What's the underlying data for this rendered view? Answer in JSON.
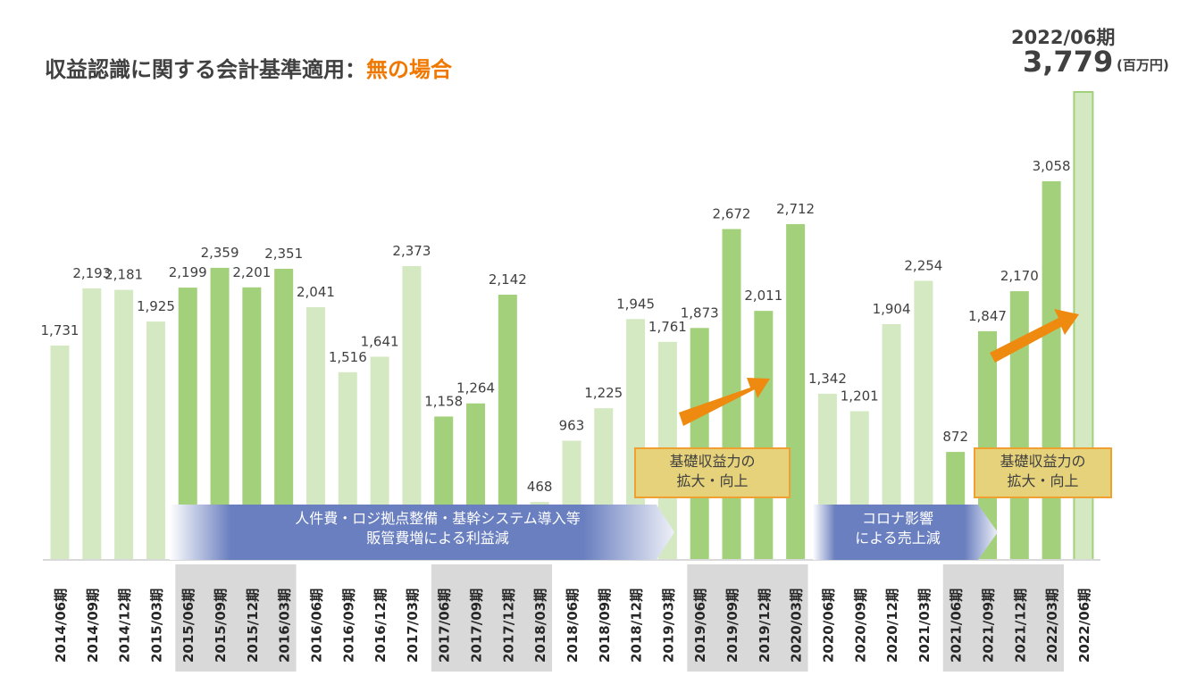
{
  "title": {
    "main": "収益認識に関する会計基準適用：",
    "highlight": "無の場合"
  },
  "header": {
    "period": "2022/06期",
    "value": "3,779",
    "unit": "(百万円)"
  },
  "annotations": {
    "banner1": [
      "人件費・ロジ拠点整備・基幹システム導入等",
      "販管費増による利益減"
    ],
    "banner2": [
      "コロナ影響",
      "による売上減"
    ],
    "box1": [
      "基礎収益力の",
      "拡大・向上"
    ],
    "box2": [
      "基礎収益力の",
      "拡大・向上"
    ]
  },
  "colors": {
    "dark": "#a3d07a",
    "light": "#d4e9c2",
    "gray": "#d9d9d9",
    "arrow": "#ef8a10",
    "banner": "#6a7fbf"
  },
  "chart_data": {
    "type": "bar",
    "title": "収益認識に関する会計基準適用：無の場合",
    "unit": "百万円",
    "ylim": [
      0,
      3779
    ],
    "categories": [
      "2014/06期",
      "2014/09期",
      "2014/12期",
      "2015/03期",
      "2015/06期",
      "2015/09期",
      "2015/12期",
      "2016/03期",
      "2016/06期",
      "2016/09期",
      "2016/12期",
      "2017/03期",
      "2017/06期",
      "2017/09期",
      "2017/12期",
      "2018/03期",
      "2018/06期",
      "2018/09期",
      "2018/12期",
      "2019/03期",
      "2019/06期",
      "2019/09期",
      "2019/12期",
      "2020/03期",
      "2020/06期",
      "2020/09期",
      "2020/12期",
      "2021/03期",
      "2021/06期",
      "2021/09期",
      "2021/12期",
      "2022/03期",
      "2022/06期"
    ],
    "values": [
      1731,
      2193,
      2181,
      1925,
      2199,
      2359,
      2201,
      2351,
      2041,
      1516,
      1641,
      2373,
      1158,
      1264,
      2142,
      468,
      963,
      1225,
      1945,
      1761,
      1873,
      2672,
      2011,
      2712,
      1342,
      1201,
      1904,
      2254,
      872,
      1847,
      2170,
      3058,
      3779
    ],
    "labels": [
      "1,731",
      "2,193",
      "2,181",
      "1,925",
      "2,199",
      "2,359",
      "2,201",
      "2,351",
      "2,041",
      "1,516",
      "1,641",
      "2,373",
      "1,158",
      "1,264",
      "2,142",
      "468",
      "963",
      "1,225",
      "1,945",
      "1,761",
      "1,873",
      "2,672",
      "2,011",
      "2,712",
      "1,342",
      "1,201",
      "1,904",
      "2,254",
      "872",
      "1,847",
      "2,170",
      "3,058",
      ""
    ],
    "highlighted": [
      0,
      0,
      0,
      0,
      1,
      1,
      1,
      1,
      0,
      0,
      0,
      0,
      1,
      1,
      1,
      0,
      0,
      0,
      0,
      0,
      1,
      1,
      1,
      1,
      0,
      0,
      0,
      0,
      1,
      1,
      1,
      1,
      0
    ],
    "gray_groups": [
      [
        4,
        7
      ],
      [
        12,
        15
      ],
      [
        20,
        23
      ],
      [
        28,
        31
      ]
    ]
  }
}
